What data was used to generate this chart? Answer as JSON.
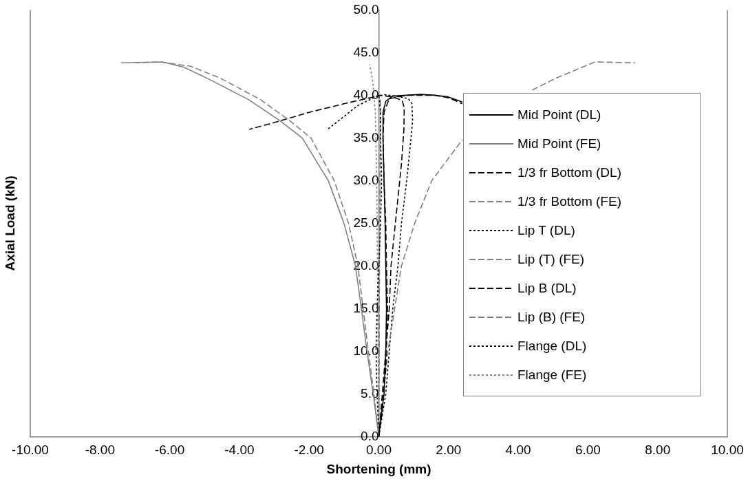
{
  "chart_data": {
    "type": "line",
    "xlabel": "Shortening (mm)",
    "ylabel": "Axial Load (kN)",
    "xlim": [
      -10,
      10
    ],
    "xticks": [
      {
        "value": -10,
        "label": "-10.00"
      },
      {
        "value": -8,
        "label": "-8.00"
      },
      {
        "value": -6,
        "label": "-6.00"
      },
      {
        "value": -4,
        "label": "-4.00"
      },
      {
        "value": -2,
        "label": "-2.00"
      },
      {
        "value": 0,
        "label": "0.00"
      },
      {
        "value": 2,
        "label": "2.00"
      },
      {
        "value": 4,
        "label": "4.00"
      },
      {
        "value": 6,
        "label": "6.00"
      },
      {
        "value": 8,
        "label": "8.00"
      },
      {
        "value": 10,
        "label": "10.00"
      }
    ],
    "ylim": [
      0,
      50
    ],
    "yticks": [
      {
        "value": 0,
        "label": "0.0"
      },
      {
        "value": 5,
        "label": "5.0"
      },
      {
        "value": 10,
        "label": "10.0"
      },
      {
        "value": 15,
        "label": "15.0"
      },
      {
        "value": 20,
        "label": "20.0"
      },
      {
        "value": 25,
        "label": "25.0"
      },
      {
        "value": 30,
        "label": "30.0"
      },
      {
        "value": 35,
        "label": "35.0"
      },
      {
        "value": 40,
        "label": "40.0"
      },
      {
        "value": 45,
        "label": "45.0"
      },
      {
        "value": 50,
        "label": "50.0"
      }
    ],
    "grid": false,
    "legend": "right",
    "marker": "none",
    "series": [
      {
        "name": "Mid Point (DL)",
        "color": "#000000",
        "line_style": "solid",
        "x": [
          0,
          0.05,
          0.15,
          0.2,
          0.22,
          0.2,
          0.18,
          0.15,
          0.12,
          0.12,
          0.2,
          0.4,
          0.8,
          1.2,
          1.6,
          2.0,
          2.4
        ],
        "values": [
          0,
          2,
          5,
          10,
          15,
          20,
          25,
          30,
          35,
          38,
          39.3,
          39.9,
          40.0,
          40.1,
          40.0,
          39.8,
          39.2
        ]
      },
      {
        "name": "Mid Point (FE)",
        "color": "#808080",
        "line_style": "solid",
        "x": [
          0,
          -0.16,
          -0.34,
          -0.5,
          -0.67,
          -1.0,
          -1.45,
          -2.2,
          -2.83,
          -3.74,
          -4.93,
          -5.6,
          -6.2,
          -7.4
        ],
        "values": [
          0,
          5,
          10,
          15,
          20,
          25,
          30,
          35,
          37,
          39.5,
          42,
          43.3,
          43.9,
          43.8
        ]
      },
      {
        "name": "1/3 fr Bottom (DL)",
        "color": "#000000",
        "line_style": "dashed",
        "x": [
          0,
          0.1,
          0.2,
          0.25,
          0.22,
          0.2,
          0.15,
          0.12,
          0.15,
          0.3,
          0.8,
          1.6,
          2.0,
          2.4
        ],
        "values": [
          0,
          3,
          8,
          15,
          20,
          25,
          30,
          35,
          38,
          39.6,
          40.0,
          40.0,
          39.7,
          39.0
        ]
      },
      {
        "name": "1/3 fr Bottom (FE)",
        "color": "#808080",
        "line_style": "dashed",
        "x": [
          0,
          -0.14,
          -0.3,
          -0.45,
          -0.6,
          -0.87,
          -1.28,
          -1.95,
          -2.55,
          -3.4,
          -4.55,
          -5.4,
          -6.3,
          -7.0
        ],
        "values": [
          0,
          5,
          10,
          15,
          20,
          25,
          30,
          35,
          37,
          39.5,
          42,
          43.4,
          43.9,
          43.8
        ]
      },
      {
        "name": "Lip T (DL)",
        "color": "#000000",
        "line_style": "dotted",
        "x": [
          0,
          -0.05,
          -0.08,
          -0.05,
          0.0,
          0.05,
          0.08,
          0.05,
          0.05,
          0,
          -0.6,
          -1.47
        ],
        "values": [
          0,
          5,
          10,
          15,
          20,
          25,
          30,
          35,
          38,
          40,
          38.8,
          36.0
        ]
      },
      {
        "name": "Lip (T) (FE)",
        "color": "#808080",
        "line_style": "dashed",
        "x": [
          0,
          0.01,
          0.02,
          0.03,
          0.04,
          0.05
        ],
        "values": [
          0,
          10,
          20,
          30,
          38,
          39.8
        ]
      },
      {
        "name": "Lip B (DL)",
        "color": "#000000",
        "line_style": "dashed",
        "x": [
          0,
          0.1,
          0.2,
          0.3,
          0.35,
          0.45,
          0.55,
          0.65,
          0.72,
          0.73,
          0.67,
          0.4,
          0.05,
          -1,
          -2,
          -3,
          -3.72
        ],
        "values": [
          0,
          5,
          10,
          15,
          20,
          24,
          28,
          32,
          36,
          38.5,
          39.4,
          39.8,
          40.0,
          39.0,
          38.0,
          36.8,
          36.0
        ]
      },
      {
        "name": "Lip (B) (FE)",
        "color": "#808080",
        "line_style": "dashed",
        "x": [
          0,
          0.26,
          0.65,
          1.03,
          1.52,
          2.4,
          3.45,
          4.4,
          5.03,
          6.2,
          7.35
        ],
        "values": [
          0,
          10,
          20,
          25,
          30,
          34.8,
          null,
          40.6,
          41.9,
          43.9,
          43.8
        ]
      },
      {
        "name": "Flange (DL)",
        "color": "#000000",
        "line_style": "dotted",
        "x": [
          0,
          0.2,
          0.3,
          0.4,
          0.55,
          0.65,
          0.8,
          0.9,
          0.97,
          0.95,
          0.85,
          0.5,
          0.1
        ],
        "values": [
          0,
          5,
          10,
          15,
          20,
          25,
          30,
          34,
          37,
          39,
          39.6,
          39.9,
          40.1
        ]
      },
      {
        "name": "Flange (FE)",
        "color": "#808080",
        "line_style": "dotted",
        "x": [
          0,
          -0.02,
          -0.04,
          -0.06,
          -0.1,
          -0.17,
          -0.26
        ],
        "values": [
          0,
          10,
          20,
          30,
          38,
          41.5,
          43.6
        ]
      }
    ]
  }
}
